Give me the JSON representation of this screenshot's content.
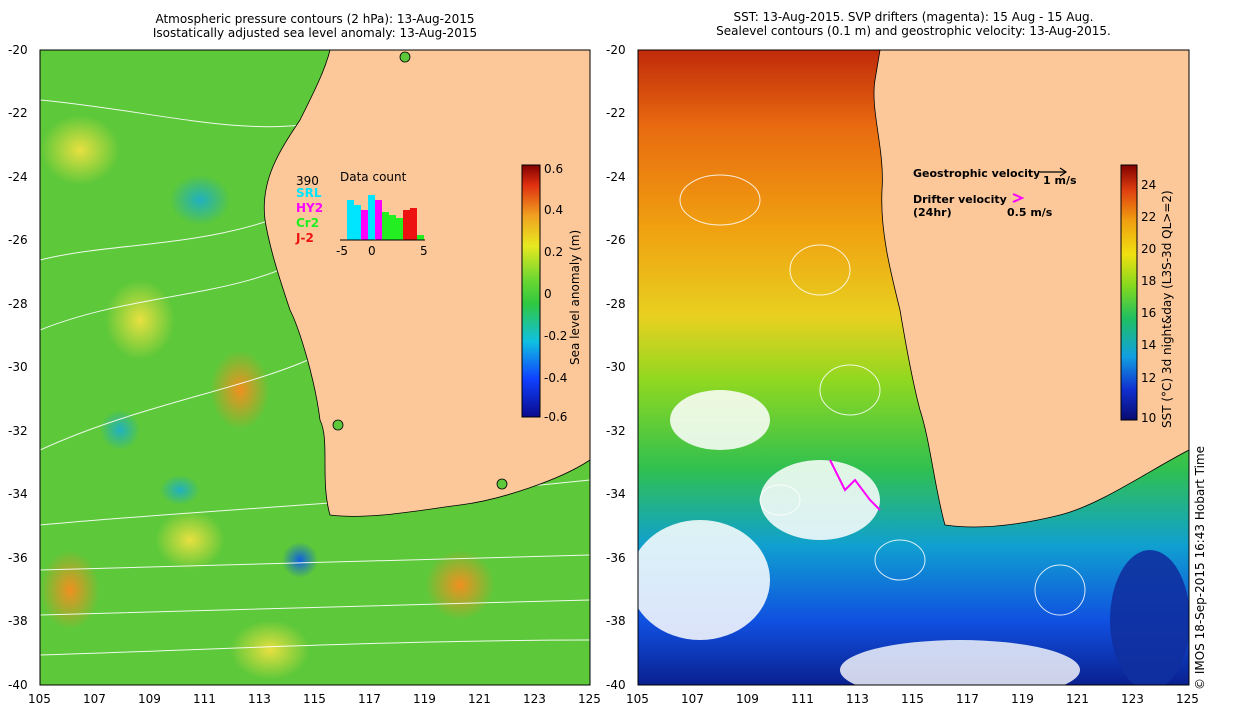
{
  "left_panel": {
    "title_line1": "Atmospheric pressure contours (2 hPa): 13-Aug-2015",
    "title_line2": "Isostatically adjusted sea level anomaly: 13-Aug-2015",
    "x_ticks": [
      "105",
      "107",
      "109",
      "111",
      "113",
      "115",
      "117",
      "119",
      "121",
      "123",
      "125"
    ],
    "y_ticks": [
      "-20",
      "-22",
      "-24",
      "-26",
      "-28",
      "-30",
      "-32",
      "-34",
      "-36",
      "-38",
      "-40"
    ],
    "colorbar": {
      "label": "Sea level anomaly (m)",
      "ticks": [
        "0.6",
        "0.4",
        "0.2",
        "0",
        "-0.2",
        "-0.4",
        "-0.6"
      ]
    },
    "inset": {
      "title": "Data count",
      "max_count": "390",
      "legend": [
        {
          "name": "SRL",
          "color": "#00e5ff"
        },
        {
          "name": "HY2",
          "color": "#ff00ff"
        },
        {
          "name": "Cr2",
          "color": "#22ee22"
        },
        {
          "name": "J-2",
          "color": "#ee1111"
        }
      ],
      "x_ticks": [
        "-5",
        "0",
        "5"
      ]
    }
  },
  "right_panel": {
    "title_line1": "SST: 13-Aug-2015. SVP drifters (magenta): 15 Aug - 15 Aug.",
    "title_line2": "Sealevel contours (0.1 m) and geostrophic velocity: 13-Aug-2015.",
    "x_ticks": [
      "105",
      "107",
      "109",
      "111",
      "113",
      "115",
      "117",
      "119",
      "121",
      "123",
      "125"
    ],
    "y_ticks": [
      "-20",
      "-22",
      "-24",
      "-26",
      "-28",
      "-30",
      "-32",
      "-34",
      "-36",
      "-38",
      "-40"
    ],
    "colorbar": {
      "label": "SST (°C) 3d night&day (L3S-3d QL>=2)",
      "ticks": [
        "24",
        "22",
        "20",
        "18",
        "16",
        "14",
        "12",
        "10"
      ]
    },
    "geostrophic_label": "Geostrophic velocity",
    "geostrophic_scale": "1 m/s",
    "drifter_label_1": "Drifter velocity",
    "drifter_label_2": "(24hr)",
    "drifter_scale": "0.5 m/s"
  },
  "credit": "© IMOS 18-Sep-2015 16:43 Hobart Time",
  "colors": {
    "land": "#fcc89a",
    "coast": "#000000",
    "sla_mid": "#5cc83a"
  }
}
